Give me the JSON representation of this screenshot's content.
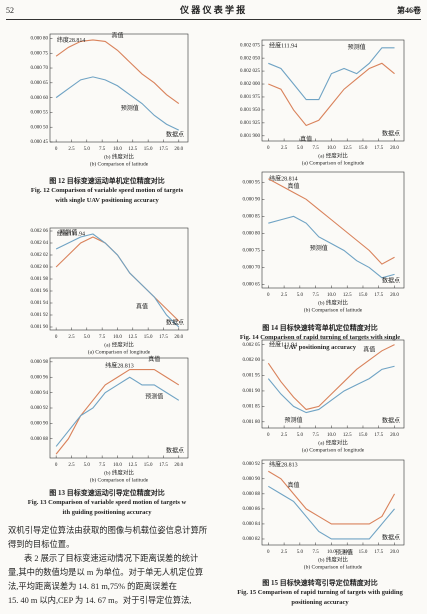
{
  "header": {
    "page_number": "52",
    "journal": "仪 器 仪 表 学 报",
    "volume": "第46卷"
  },
  "chart_data": [
    {
      "type": "line",
      "annotation": "纬度28.814",
      "x_unit_label": "数据点",
      "x_label": "(b) 纬度对比",
      "x_label_en": "(b) Comparison of latitude",
      "x": [
        0,
        2,
        4,
        6,
        8,
        10,
        12,
        14,
        16,
        18,
        20
      ],
      "xlim": [
        -1,
        21.5
      ],
      "xticks": [
        0,
        2.5,
        {
          "value": 5,
          "label": "5.0"
        },
        7.5,
        {
          "value": 10,
          "label": "10.0"
        },
        12.5,
        {
          "value": 15,
          "label": "15.0"
        },
        17.5,
        {
          "value": 20,
          "label": "20.0"
        }
      ],
      "ylim": [
        0.00045,
        0.000815
      ],
      "yticks": [
        {
          "value": 0.0008,
          "label": "0.000 80"
        },
        {
          "value": 0.00075,
          "label": "0.000 75"
        },
        {
          "value": 0.0007,
          "label": "0.000 70"
        },
        {
          "value": 0.00065,
          "label": "0.000 65"
        },
        {
          "value": 0.0006,
          "label": "0.000 60"
        },
        {
          "value": 0.00055,
          "label": "0.000 55"
        },
        {
          "value": 0.0005,
          "label": "0.000 50"
        },
        {
          "value": 0.00045,
          "label": "0.000 45"
        }
      ],
      "series": [
        {
          "name": "真值",
          "color": "#d9825b",
          "values": [
            0.00074,
            0.00077,
            0.00079,
            0.000795,
            0.00079,
            0.00076,
            0.00072,
            0.00068,
            0.00065,
            0.00061,
            0.00058
          ]
        },
        {
          "name": "预测值",
          "color": "#6fa3c4",
          "values": [
            0.0006,
            0.00063,
            0.00066,
            0.00067,
            0.00066,
            0.00064,
            0.00061,
            0.00058,
            0.00054,
            0.00051,
            0.00049
          ]
        }
      ]
    },
    {
      "type": "line",
      "annotation": "经度111.94",
      "x_unit_label": "数据点",
      "x_label": "(a) 经度对比",
      "x_label_en": "(a) Comparison of longitude",
      "x": [
        0,
        2,
        4,
        6,
        8,
        10,
        12,
        14,
        16,
        18,
        20
      ],
      "xlim": [
        -1,
        21.5
      ],
      "xticks": [
        0,
        2.5,
        {
          "value": 5,
          "label": "5.0"
        },
        7.5,
        {
          "value": 10,
          "label": "10.0"
        },
        12.5,
        {
          "value": 15,
          "label": "15.0"
        },
        17.5,
        {
          "value": 20,
          "label": "20.0"
        }
      ],
      "ylim": [
        0.001895,
        0.002065
      ],
      "yticks": [
        {
          "value": 0.00206,
          "label": "0.002 06"
        },
        {
          "value": 0.00204,
          "label": "0.002 04"
        },
        {
          "value": 0.00202,
          "label": "0.002 02"
        },
        {
          "value": 0.002,
          "label": "0.002 00"
        },
        {
          "value": 0.00198,
          "label": "0.001 98"
        },
        {
          "value": 0.00196,
          "label": "0.001 96"
        },
        {
          "value": 0.00194,
          "label": "0.001 94"
        },
        {
          "value": 0.00192,
          "label": "0.001 92"
        },
        {
          "value": 0.0019,
          "label": "0.001 90"
        }
      ],
      "series": [
        {
          "name": "真值",
          "color": "#d9825b",
          "values": [
            0.002,
            0.00202,
            0.00204,
            0.00205,
            0.00204,
            0.00202,
            0.00199,
            0.00197,
            0.00195,
            0.00193,
            0.00191
          ]
        },
        {
          "name": "预测值",
          "color": "#6fa3c4",
          "values": [
            0.00203,
            0.00204,
            0.00205,
            0.002055,
            0.00204,
            0.00202,
            0.00199,
            0.00197,
            0.00195,
            0.00192,
            0.0019
          ]
        }
      ]
    },
    {
      "type": "line",
      "annotation": "纬度28.813",
      "x_unit_label": "数据点",
      "x_label": "(b) 纬度对比",
      "x_label_en": "(b) Comparison of latitude",
      "x": [
        0,
        2,
        4,
        6,
        8,
        10,
        12,
        14,
        16,
        18,
        20
      ],
      "xlim": [
        -1,
        21.5
      ],
      "xticks": [
        0,
        2.5,
        {
          "value": 5,
          "label": "5.0"
        },
        7.5,
        {
          "value": 10,
          "label": "10.0"
        },
        12.5,
        {
          "value": 15,
          "label": "15.0"
        },
        17.5,
        {
          "value": 20,
          "label": "20.0"
        }
      ],
      "ylim": [
        0.000855,
        0.000985
      ],
      "yticks": [
        {
          "value": 0.00098,
          "label": "0.000 98"
        },
        {
          "value": 0.00096,
          "label": "0.000 96"
        },
        {
          "value": 0.00094,
          "label": "0.000 94"
        },
        {
          "value": 0.00092,
          "label": "0.000 92"
        },
        {
          "value": 0.0009,
          "label": "0.000 90"
        },
        {
          "value": 0.00088,
          "label": "0.000 88"
        }
      ],
      "series": [
        {
          "name": "真值",
          "color": "#d9825b",
          "values": [
            0.00086,
            0.00088,
            0.00091,
            0.00093,
            0.00095,
            0.00096,
            0.00097,
            0.00097,
            0.00097,
            0.00096,
            0.00095
          ]
        },
        {
          "name": "预测值",
          "color": "#6fa3c4",
          "values": [
            0.00087,
            0.00089,
            0.00091,
            0.00092,
            0.00094,
            0.00095,
            0.00096,
            0.00095,
            0.00095,
            0.00094,
            0.00093
          ]
        }
      ]
    },
    {
      "type": "line",
      "annotation": "经度111.94",
      "x_unit_label": "数据点",
      "x_label": "(a) 经度对比",
      "x_label_en": "(a) Comparison of longitude",
      "x": [
        0,
        2,
        4,
        6,
        8,
        10,
        12,
        14,
        16,
        18,
        20
      ],
      "xlim": [
        -1,
        21.5
      ],
      "xticks": [
        0,
        2.5,
        {
          "value": 5,
          "label": "5.0"
        },
        7.5,
        {
          "value": 10,
          "label": "10.0"
        },
        12.5,
        {
          "value": 15,
          "label": "15.0"
        },
        17.5,
        {
          "value": 20,
          "label": "20.0"
        }
      ],
      "ylim": [
        0.00189,
        0.002085
      ],
      "yticks": [
        {
          "value": 0.002075,
          "label": "0.002 075"
        },
        {
          "value": 0.00205,
          "label": "0.002 050"
        },
        {
          "value": 0.002025,
          "label": "0.002 025"
        },
        {
          "value": 0.002,
          "label": "0.002 000"
        },
        {
          "value": 0.001975,
          "label": "0.001 975"
        },
        {
          "value": 0.00195,
          "label": "0.001 950"
        },
        {
          "value": 0.001925,
          "label": "0.001 925"
        },
        {
          "value": 0.0019,
          "label": "0.001 900"
        }
      ],
      "series": [
        {
          "name": "真值",
          "color": "#d9825b",
          "values": [
            0.002,
            0.00199,
            0.00195,
            0.00192,
            0.00193,
            0.00196,
            0.00199,
            0.00201,
            0.00203,
            0.00204,
            0.00202
          ]
        },
        {
          "name": "预测值",
          "color": "#6fa3c4",
          "values": [
            0.00204,
            0.00203,
            0.002,
            0.00197,
            0.00197,
            0.00202,
            0.00203,
            0.00202,
            0.00204,
            0.00207,
            0.00207
          ]
        }
      ]
    },
    {
      "type": "line",
      "annotation": "纬度28.814",
      "x_unit_label": "数据点",
      "x_label": "(b) 纬度对比",
      "x_label_en": "(b) Comparison of latitude",
      "x": [
        0,
        2,
        4,
        6,
        8,
        10,
        12,
        14,
        16,
        18,
        20
      ],
      "xlim": [
        -1,
        21.5
      ],
      "xticks": [
        0,
        2.5,
        {
          "value": 5,
          "label": "5.0"
        },
        7.5,
        {
          "value": 10,
          "label": "10.0"
        },
        12.5,
        {
          "value": 15,
          "label": "15.0"
        },
        17.5,
        {
          "value": 20,
          "label": "20.0"
        }
      ],
      "ylim": [
        0.00064,
        0.00098
      ],
      "yticks": [
        {
          "value": 0.00095,
          "label": "0.000 95"
        },
        {
          "value": 0.0009,
          "label": "0.000 90"
        },
        {
          "value": 0.00085,
          "label": "0.000 85"
        },
        {
          "value": 0.0008,
          "label": "0.000 80"
        },
        {
          "value": 0.00075,
          "label": "0.000 75"
        },
        {
          "value": 0.0007,
          "label": "0.000 70"
        },
        {
          "value": 0.00065,
          "label": "0.000 65"
        }
      ],
      "series": [
        {
          "name": "真值",
          "color": "#d9825b",
          "values": [
            0.00096,
            0.00094,
            0.00092,
            0.0009,
            0.00087,
            0.00084,
            0.00081,
            0.00078,
            0.00075,
            0.00071,
            0.00073
          ]
        },
        {
          "name": "预测值",
          "color": "#6fa3c4",
          "values": [
            0.00083,
            0.00084,
            0.00085,
            0.00083,
            0.00079,
            0.00077,
            0.00075,
            0.00072,
            0.0007,
            0.00067,
            0.00068
          ]
        }
      ]
    },
    {
      "type": "line",
      "annotation": "经度111.94",
      "x_unit_label": "数据点",
      "x_label": "(a) 经度对比",
      "x_label_en": "(a) Comparison of longitude",
      "x": [
        0,
        2,
        4,
        6,
        8,
        10,
        12,
        14,
        16,
        18,
        20
      ],
      "xlim": [
        -1,
        21.5
      ],
      "xticks": [
        0,
        2.5,
        {
          "value": 5,
          "label": "5.0"
        },
        7.5,
        {
          "value": 10,
          "label": "10.0"
        },
        12.5,
        {
          "value": 15,
          "label": "15.0"
        },
        17.5,
        {
          "value": 20,
          "label": "20.0"
        }
      ],
      "ylim": [
        0.00178,
        0.002065
      ],
      "yticks": [
        {
          "value": 0.00205,
          "label": "0.002 05"
        },
        {
          "value": 0.002,
          "label": "0.002 00"
        },
        {
          "value": 0.00195,
          "label": "0.001 95"
        },
        {
          "value": 0.0019,
          "label": "0.001 90"
        },
        {
          "value": 0.00185,
          "label": "0.001 85"
        },
        {
          "value": 0.0018,
          "label": "0.001 80"
        }
      ],
      "series": [
        {
          "name": "真值",
          "color": "#d9825b",
          "values": [
            0.00199,
            0.00193,
            0.00188,
            0.00184,
            0.00185,
            0.00189,
            0.00193,
            0.00197,
            0.002,
            0.00203,
            0.00205
          ]
        },
        {
          "name": "预测值",
          "color": "#6fa3c4",
          "values": [
            0.00194,
            0.00189,
            0.00185,
            0.00183,
            0.00184,
            0.00187,
            0.0019,
            0.00192,
            0.00194,
            0.00197,
            0.00198
          ]
        }
      ]
    },
    {
      "type": "line",
      "annotation": "纬度28.813",
      "x_unit_label": "数据点",
      "x_label": "(b) 纬度对比",
      "x_label_en": "(b) Comparison of latitude",
      "x": [
        0,
        2,
        4,
        6,
        8,
        10,
        12,
        14,
        16,
        18,
        20
      ],
      "xlim": [
        -1,
        21.5
      ],
      "xticks": [
        0,
        2.5,
        {
          "value": 5,
          "label": "5.0"
        },
        7.5,
        {
          "value": 10,
          "label": "10.0"
        },
        12.5,
        {
          "value": 15,
          "label": "15.0"
        },
        17.5,
        {
          "value": 20,
          "label": "20.0"
        }
      ],
      "ylim": [
        0.000812,
        0.000925
      ],
      "yticks": [
        {
          "value": 0.00092,
          "label": "0.000 92"
        },
        {
          "value": 0.0009,
          "label": "0.000 90"
        },
        {
          "value": 0.00088,
          "label": "0.000 88"
        },
        {
          "value": 0.00086,
          "label": "0.000 86"
        },
        {
          "value": 0.00084,
          "label": "0.000 84"
        },
        {
          "value": 0.00082,
          "label": "0.000 82"
        }
      ],
      "series": [
        {
          "name": "真值",
          "color": "#d9825b",
          "values": [
            0.00091,
            0.0009,
            0.00088,
            0.00086,
            0.00085,
            0.00084,
            0.00084,
            0.00084,
            0.00084,
            0.00085,
            0.00088
          ]
        },
        {
          "name": "预测值",
          "color": "#6fa3c4",
          "values": [
            0.00089,
            0.00088,
            0.00087,
            0.00085,
            0.00083,
            0.00082,
            0.00082,
            0.00082,
            0.00082,
            0.00084,
            0.00086
          ]
        }
      ]
    }
  ],
  "captions": [
    {
      "cn": "图 12   目标变速运动单机定位精度对比",
      "en": [
        "Fig. 12   Comparison of variable speed motion of targets",
        "with single UAV positioning accuracy"
      ]
    },
    {
      "cn": "图 13   目标变速运动引导定位精度对比",
      "en": [
        "Fig. 13   Comparison of variable speed motion of targets w",
        "ith guiding positioning accuracy"
      ]
    },
    {
      "cn": "图 14   目标快速转弯单机定位精度对比",
      "en": [
        "Fig. 14   Comparison of rapid turning of targets with single",
        "UAV positioning accuracy"
      ]
    },
    {
      "cn": "图 15   目标快速转弯引导定位精度对比",
      "en": [
        "Fig. 15   Comparison of rapid turning of targets with guiding",
        "positioning accuracy"
      ]
    }
  ],
  "body": [
    "双机引导定位算法由获取的图像与机载位姿信息计算所",
    "得到的目标位置。",
    "表 2 展示了目标变速运动情况下距离误差的统计",
    "量,其中的数值均是以 m 为单位。对于单无人机定位算",
    "法,平均距离误差为 14. 81 m,75% 的距离误差在",
    "15. 40 m 以内,CEP 为 14. 67 m。对于引导定位算法,"
  ]
}
